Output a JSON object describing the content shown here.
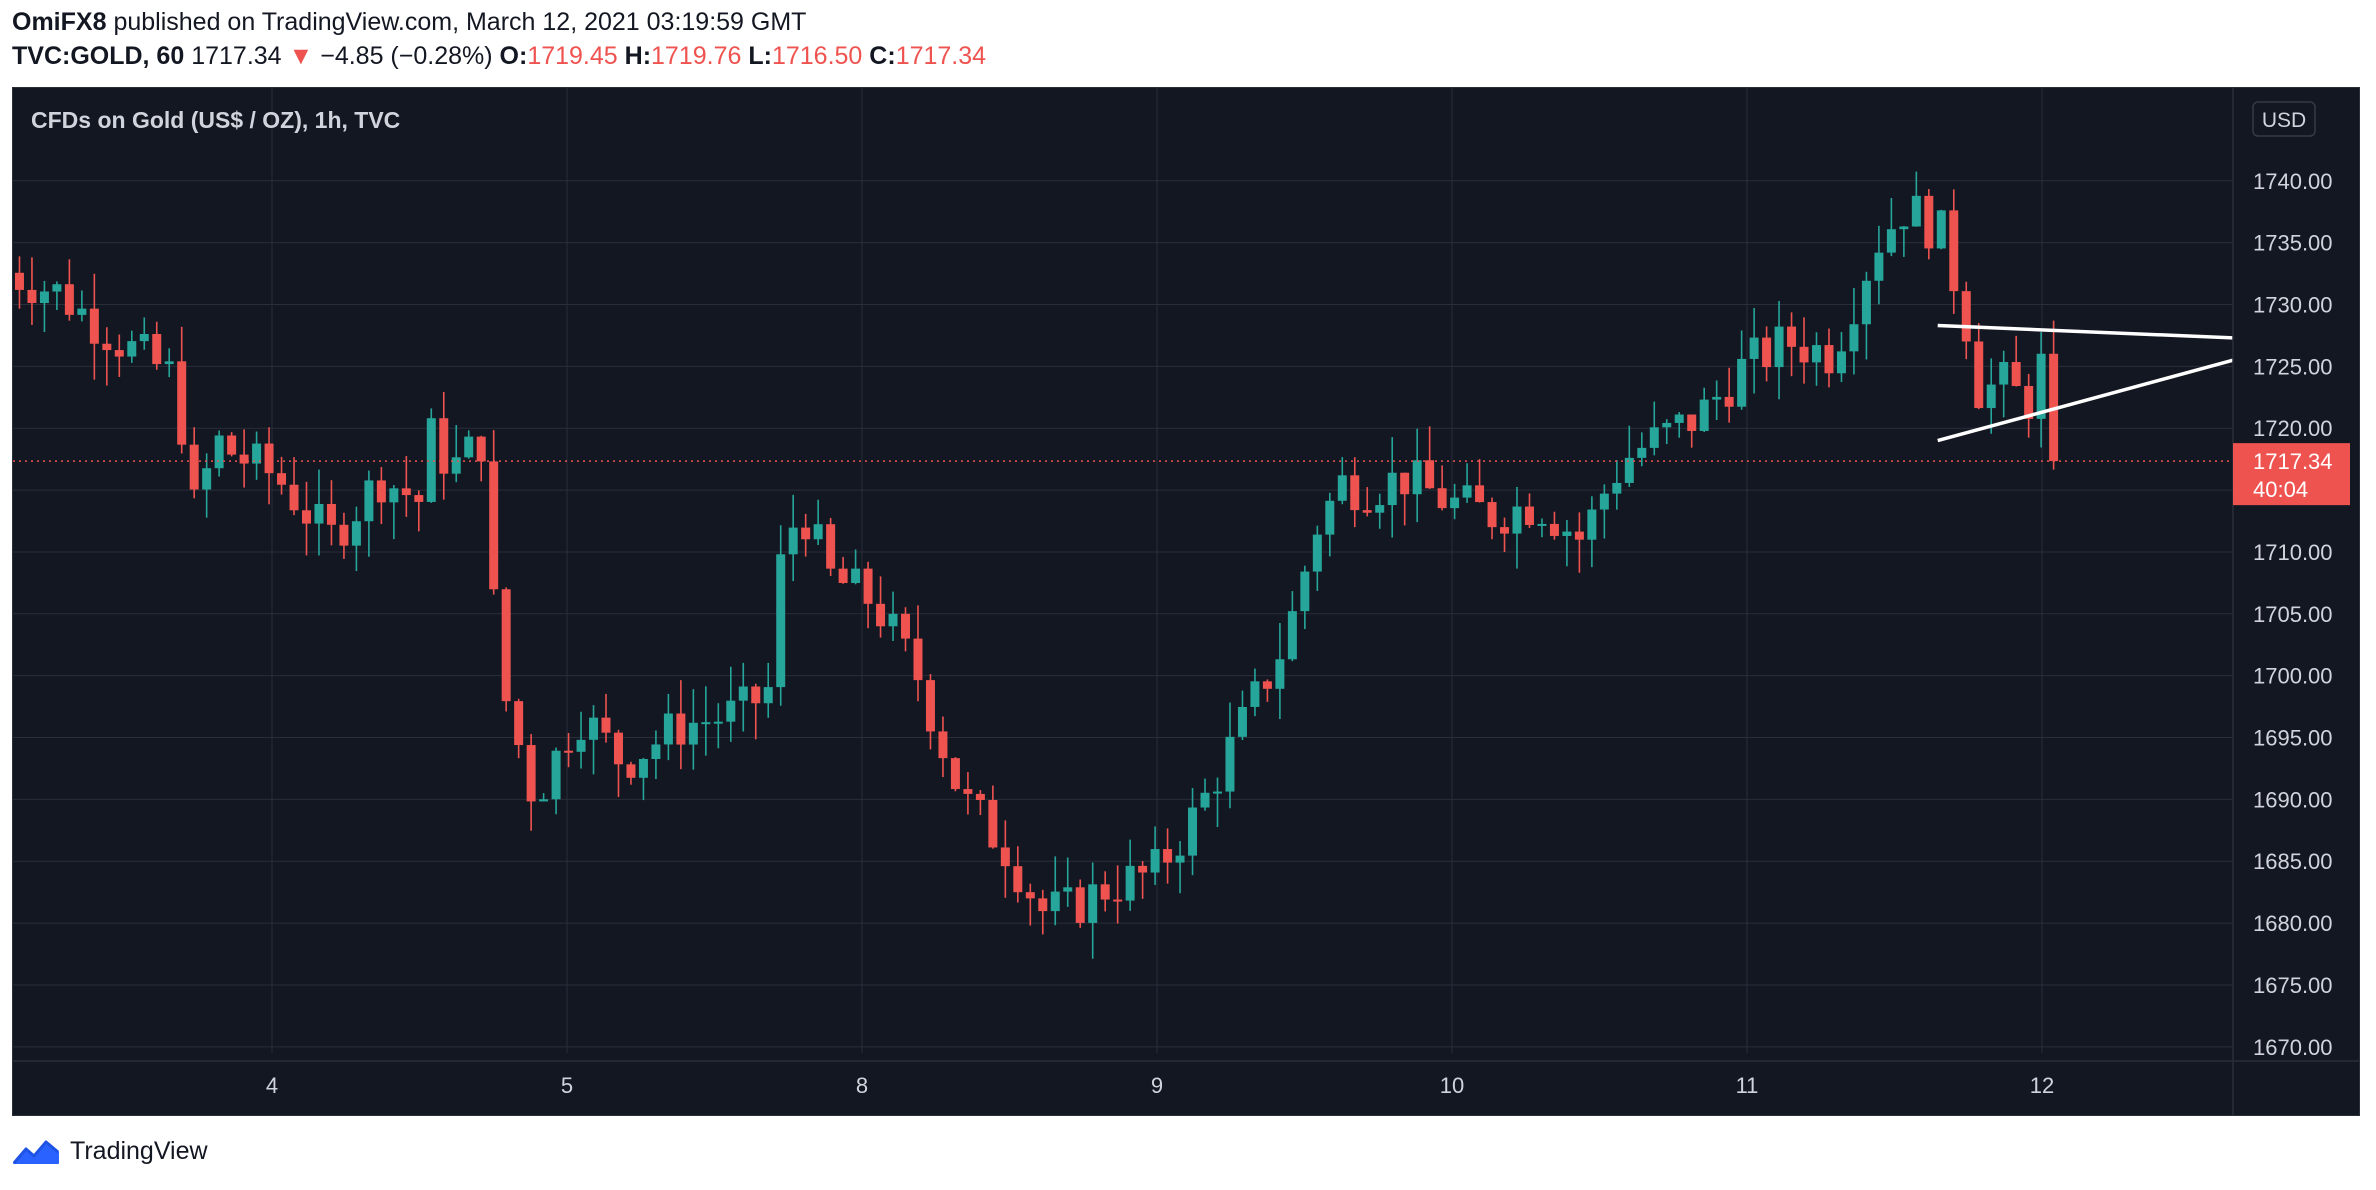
{
  "header": {
    "author": "OmiFX8",
    "published_text": "published on TradingView.com, March 12, 2021 03:19:59 GMT",
    "symbol": "TVC:GOLD, 60",
    "last": "1717.34",
    "change": "−4.85 (−0.28%)",
    "o_label": "O:",
    "o": "1719.45",
    "h_label": "H:",
    "h": "1719.76",
    "l_label": "L:",
    "l": "1716.50",
    "c_label": "C:",
    "c": "1717.34"
  },
  "footer": {
    "brand": "TradingView"
  },
  "colors": {
    "background": "#131722",
    "grid": "#2a2e39",
    "up": "#26a69a",
    "down": "#ef5350",
    "axis_text": "#d1d4dc",
    "trendline": "#ffffff"
  },
  "chart_data": {
    "type": "candlestick",
    "title": "CFDs on Gold (US$ / OZ), 1h, TVC",
    "currency": "USD",
    "x_ticks": [
      "4",
      "5",
      "8",
      "9",
      "10",
      "11",
      "12"
    ],
    "y_ticks": [
      1670,
      1675,
      1680,
      1685,
      1690,
      1695,
      1700,
      1705,
      1710,
      1715,
      1720,
      1725,
      1730,
      1735,
      1740
    ],
    "ylim": [
      1669.5,
      1747.5
    ],
    "grid": true,
    "last_price": {
      "value": 1717.34,
      "label": "1717.34",
      "countdown": "40:04"
    },
    "trendlines": [
      {
        "name": "upper",
        "from": [
          1728.3,
          0.1
        ],
        "to": [
          1727.3,
          12.98
        ]
      },
      {
        "name": "lower",
        "from": [
          1719.0,
          0.1
        ],
        "to": [
          1725.5,
          12.98
        ]
      }
    ],
    "candle_pattern": {
      "segments": [
        {
          "day": "3",
          "points": [
            [
              0,
              1733
            ],
            [
              0.25,
              1731
            ],
            [
              0.5,
              1727
            ],
            [
              0.72,
              1724
            ],
            [
              0.8,
              1713
            ],
            [
              0.95,
              1718
            ]
          ]
        },
        {
          "day": "4",
          "points": [
            [
              0,
              1719
            ],
            [
              0.3,
              1716
            ],
            [
              0.55,
              1711
            ],
            [
              0.8,
              1716
            ],
            [
              1,
              1714
            ]
          ]
        },
        {
          "day": "4b",
          "points": [
            [
              0,
              1718
            ],
            [
              0.25,
              1720
            ],
            [
              0.45,
              1716
            ],
            [
              0.7,
              1718
            ],
            [
              1,
              1719
            ]
          ]
        },
        {
          "day": "5",
          "points": [
            [
              0,
              1718
            ],
            [
              0.08,
              1700
            ],
            [
              0.2,
              1690
            ],
            [
              0.35,
              1697
            ],
            [
              0.5,
              1693
            ],
            [
              0.7,
              1696
            ],
            [
              0.9,
              1697
            ],
            [
              1,
              1699
            ]
          ]
        },
        {
          "day": "8",
          "points": [
            [
              0,
              1706
            ],
            [
              0.1,
              1714
            ],
            [
              0.2,
              1708
            ],
            [
              0.35,
              1706
            ],
            [
              0.5,
              1700
            ],
            [
              0.65,
              1690
            ],
            [
              0.8,
              1686
            ],
            [
              0.92,
              1681
            ],
            [
              1,
              1681
            ]
          ]
        },
        {
          "day": "9",
          "points": [
            [
              0,
              1681
            ],
            [
              0.15,
              1683
            ],
            [
              0.3,
              1684
            ],
            [
              0.45,
              1689
            ],
            [
              0.6,
              1696
            ],
            [
              0.75,
              1703
            ],
            [
              0.85,
              1712
            ],
            [
              0.95,
              1716
            ],
            [
              1,
              1715
            ]
          ]
        },
        {
          "day": "10",
          "points": [
            [
              0,
              1715
            ],
            [
              0.15,
              1716
            ],
            [
              0.3,
              1714
            ],
            [
              0.45,
              1713
            ],
            [
              0.6,
              1714
            ],
            [
              0.75,
              1711
            ],
            [
              0.85,
              1716
            ],
            [
              0.92,
              1718
            ],
            [
              1,
              1719
            ]
          ]
        },
        {
          "day": "11",
          "points": [
            [
              0,
              1719
            ],
            [
              0.15,
              1721
            ],
            [
              0.3,
              1725
            ],
            [
              0.45,
              1727
            ],
            [
              0.6,
              1726
            ],
            [
              0.75,
              1735
            ],
            [
              0.85,
              1738
            ],
            [
              1,
              1735
            ]
          ]
        },
        {
          "day": "12",
          "points": [
            [
              0,
              1733
            ],
            [
              0.08,
              1731
            ],
            [
              0.2,
              1727
            ],
            [
              0.3,
              1722
            ],
            [
              0.45,
              1724
            ],
            [
              0.6,
              1723
            ],
            [
              0.75,
              1722
            ],
            [
              0.82,
              1724
            ],
            [
              0.88,
              1725
            ],
            [
              0.95,
              1719
            ],
            [
              1,
              1717
            ]
          ]
        }
      ]
    }
  }
}
